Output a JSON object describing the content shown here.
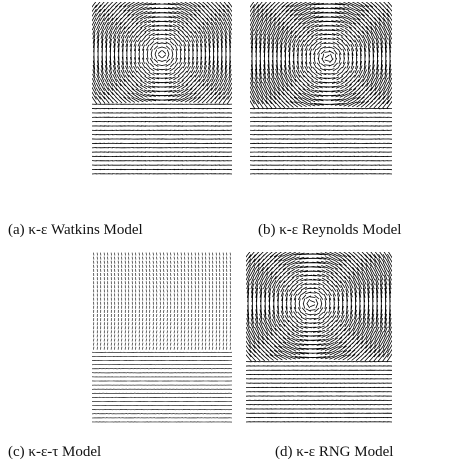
{
  "figure": {
    "panels": [
      {
        "caption": "(a) κ-ε Watkins Model"
      },
      {
        "caption": "(b) κ-ε Reynolds Model"
      },
      {
        "caption": "(c) κ-ε-τ Model"
      },
      {
        "caption": "(d) κ-ε RNG Model"
      }
    ]
  }
}
